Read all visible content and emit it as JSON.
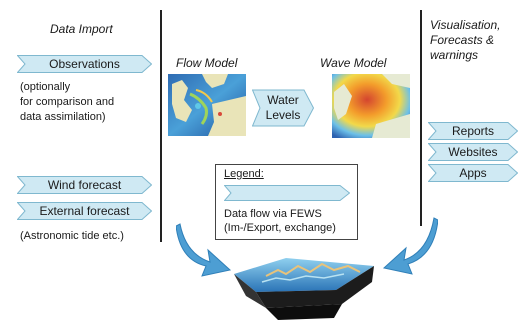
{
  "headers": {
    "data_import": "Data Import",
    "visualisation": [
      "Visualisation,",
      "Forecasts &",
      "warnings"
    ],
    "flow_model": "Flow Model",
    "wave_model": "Wave Model"
  },
  "inputs": {
    "observations": "Observations",
    "observations_note": [
      "(optionally",
      "for comparison and",
      "data assimilation)"
    ],
    "wind_forecast": "Wind forecast",
    "external_forecast": "External forecast",
    "external_note": "(Astronomic tide etc.)"
  },
  "link": [
    "Water",
    "Levels"
  ],
  "outputs": [
    "Reports",
    "Websites",
    "Apps"
  ],
  "legend": {
    "title": "Legend:",
    "text": [
      "Data flow via FEWS",
      "(Im-/Export, exchange)"
    ]
  },
  "colors": {
    "arrow_fill": "#cfe9f3",
    "arrow_stroke": "#7fb8cf",
    "divider": "#222222",
    "curved_arrow": "#4d9ed3"
  }
}
